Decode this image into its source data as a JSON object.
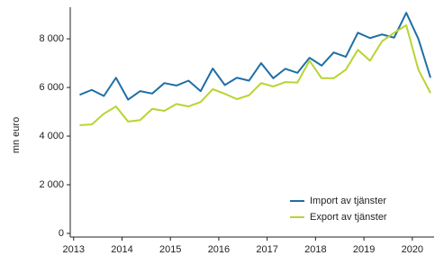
{
  "chart_data": {
    "type": "line",
    "y_label": "mn euro",
    "x": [
      2013.125,
      2013.375,
      2013.625,
      2013.875,
      2014.125,
      2014.375,
      2014.625,
      2014.875,
      2015.125,
      2015.375,
      2015.625,
      2015.875,
      2016.125,
      2016.375,
      2016.625,
      2016.875,
      2017.125,
      2017.375,
      2017.625,
      2017.875,
      2018.125,
      2018.375,
      2018.625,
      2018.875,
      2019.125,
      2019.375,
      2019.625,
      2019.875,
      2020.125,
      2020.375
    ],
    "series": [
      {
        "name": "Import av tjänster",
        "color": "#1f6fa6",
        "values": [
          5700,
          5900,
          5650,
          6400,
          5500,
          5850,
          5750,
          6180,
          6080,
          6280,
          5850,
          6780,
          6100,
          6400,
          6280,
          7000,
          6380,
          6770,
          6600,
          7220,
          6900,
          7440,
          7260,
          8250,
          8030,
          8180,
          8050,
          9070,
          8000,
          6400
        ]
      },
      {
        "name": "Export av tjänster",
        "color": "#b8d432",
        "values": [
          4450,
          4480,
          4920,
          5220,
          4600,
          4660,
          5120,
          5040,
          5320,
          5220,
          5400,
          5930,
          5740,
          5520,
          5680,
          6180,
          6040,
          6220,
          6200,
          7100,
          6380,
          6380,
          6730,
          7550,
          7100,
          7900,
          8250,
          8560,
          6730,
          5770
        ]
      }
    ],
    "xlim": [
      2012.93,
      2020.45
    ],
    "xticks": [
      2013,
      2014,
      2015,
      2016,
      2017,
      2018,
      2019,
      2020
    ],
    "ylim": [
      -150,
      9300
    ],
    "yticks": [
      {
        "value": 0,
        "label": "0"
      },
      {
        "value": 2000,
        "label": "2 000"
      },
      {
        "value": 4000,
        "label": "4 000"
      },
      {
        "value": 6000,
        "label": "6 000"
      },
      {
        "value": 8000,
        "label": "8 000"
      }
    ],
    "grid": false,
    "legend": "lower right"
  }
}
